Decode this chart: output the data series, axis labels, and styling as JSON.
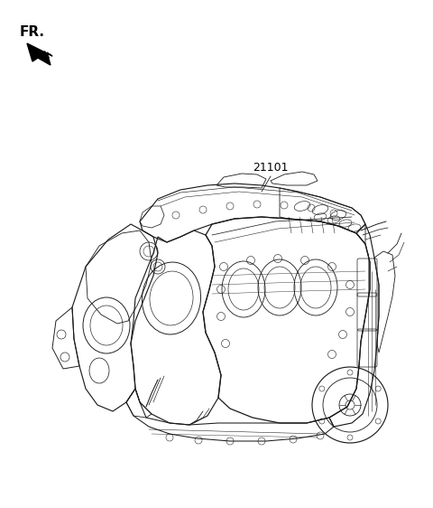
{
  "background_color": "#ffffff",
  "fr_label": "FR.",
  "fr_fontsize": 11,
  "fr_fontweight": "bold",
  "part_number": "21101",
  "part_fontsize": 9,
  "engine_color": "#1a1a1a",
  "engine_linewidth": 0.75,
  "fig_width": 4.8,
  "fig_height": 5.62,
  "dpi": 100
}
